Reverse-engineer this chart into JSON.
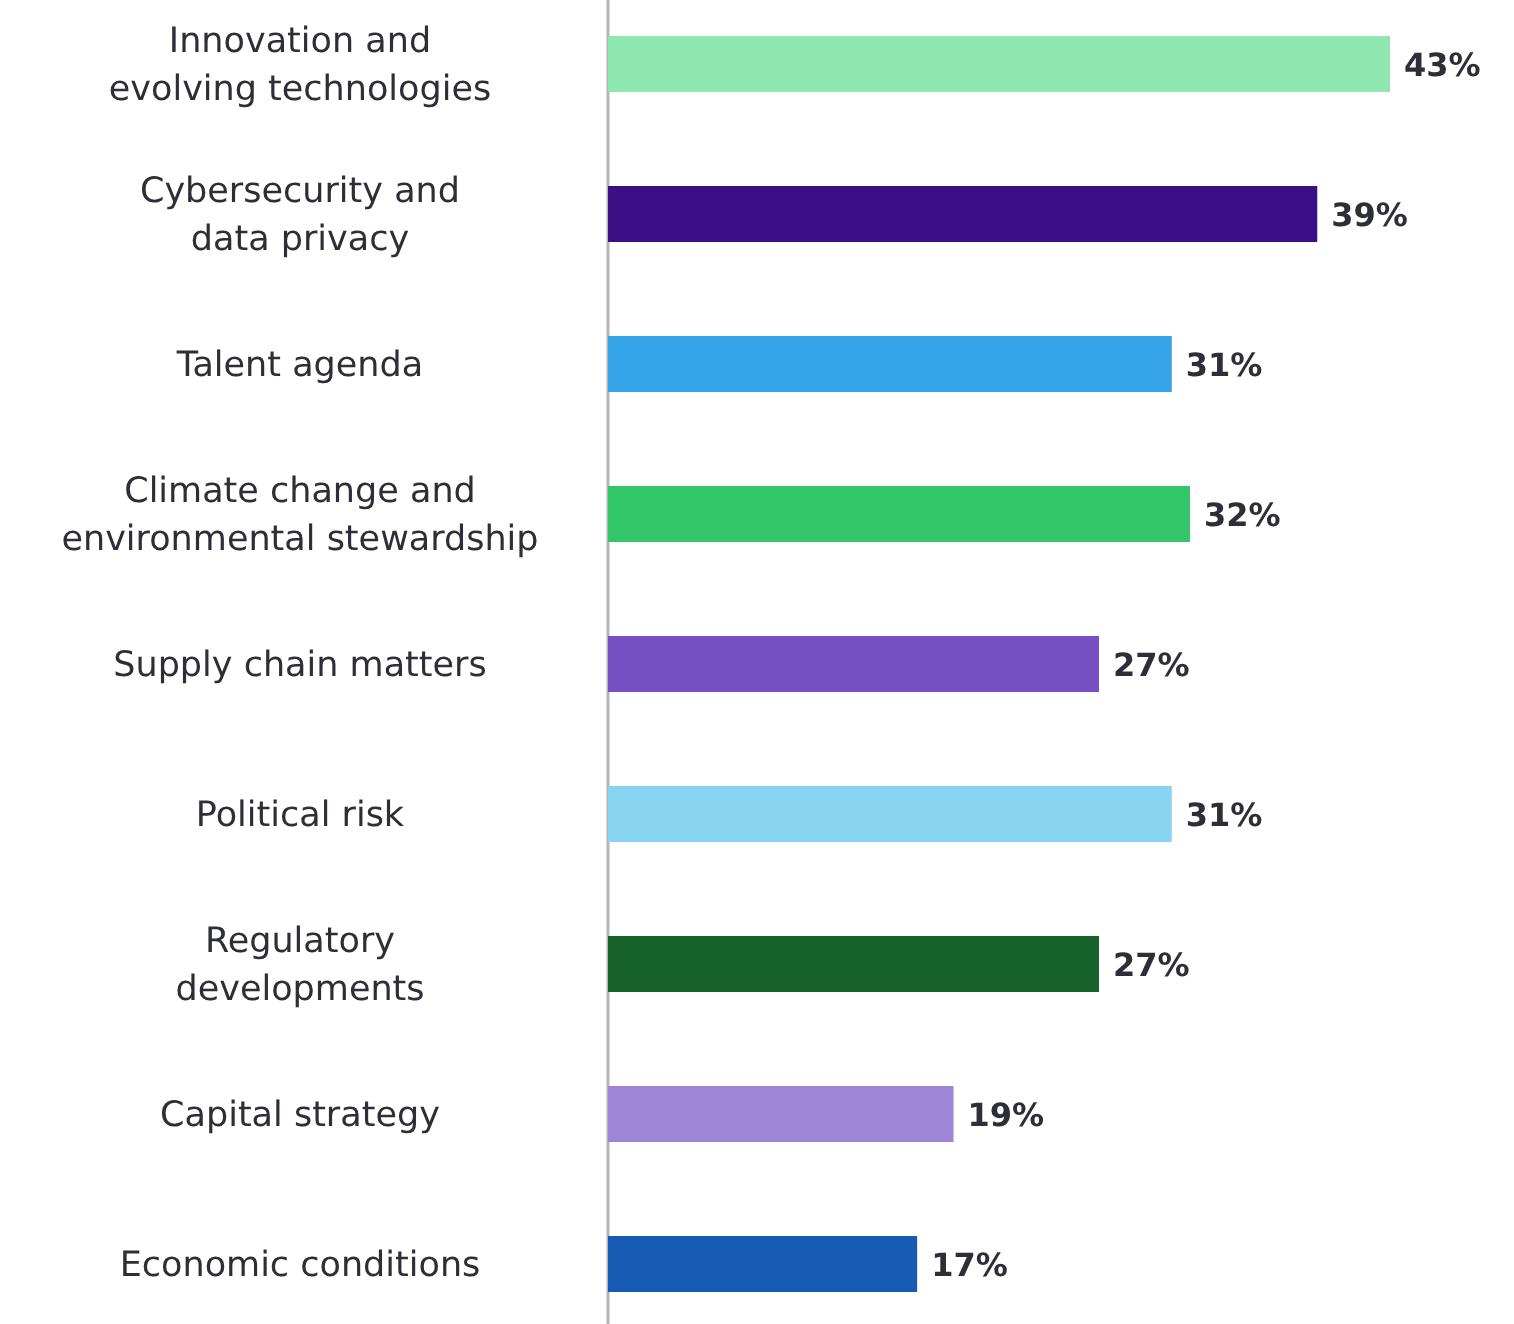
{
  "chart_data": {
    "type": "bar",
    "orientation": "horizontal",
    "data_labels": true,
    "categories": [
      "Innovation and\nevolving technologies",
      "Cybersecurity and\ndata privacy",
      "Talent agenda",
      "Climate change and\nenvironmental stewardship",
      "Supply chain matters",
      "Political risk",
      "Regulatory\ndevelopments",
      "Capital strategy",
      "Economic conditions"
    ],
    "values": [
      43,
      39,
      31,
      32,
      27,
      31,
      27,
      19,
      17
    ],
    "colors": [
      "#8ee8ad",
      "#3d0f87",
      "#35a4e8",
      "#34c76a",
      "#7650c3",
      "#87d4f0",
      "#17622b",
      "#9e85d6",
      "#165cb4"
    ],
    "value_labels": [
      "43%",
      "39%",
      "31%",
      "32%",
      "27%",
      "31%",
      "27%",
      "19%",
      "17%"
    ]
  }
}
